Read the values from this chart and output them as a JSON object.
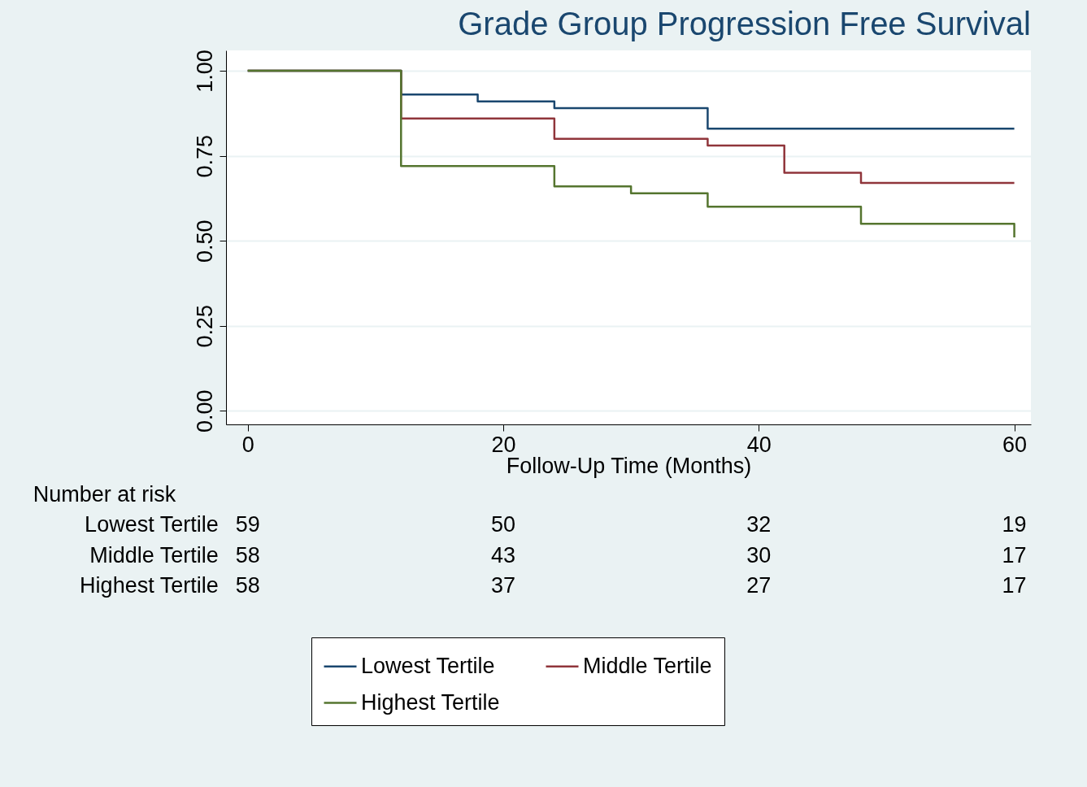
{
  "chart_data": {
    "type": "step",
    "title": "Grade Group Progression Free Survival",
    "xlabel": "Follow-Up Time (Months)",
    "xlim": [
      -1.7,
      61.3
    ],
    "xticks": [
      0,
      20,
      40,
      60
    ],
    "ylim": [
      -0.04,
      1.06
    ],
    "yticks": [
      {
        "value": 0,
        "label": "0.00"
      },
      {
        "value": 0.25,
        "label": "0.25"
      },
      {
        "value": 0.5,
        "label": "0.50"
      },
      {
        "value": 0.75,
        "label": "0.75"
      },
      {
        "value": 1,
        "label": "1.00"
      }
    ],
    "grid": "y",
    "legend": "bottom",
    "series": [
      {
        "name": "Lowest Tertile",
        "color": "#1a476f",
        "x": [
          0,
          12,
          18,
          24,
          36,
          60
        ],
        "values": [
          1,
          0.93,
          0.91,
          0.89,
          0.83,
          0.83
        ]
      },
      {
        "name": "Middle Tertile",
        "color": "#90353b",
        "x": [
          0,
          12,
          24,
          36,
          42,
          48,
          60
        ],
        "values": [
          1,
          0.86,
          0.8,
          0.78,
          0.7,
          0.67,
          0.67
        ]
      },
      {
        "name": "Highest Tertile",
        "color": "#55752f",
        "x": [
          0,
          12,
          24,
          30,
          36,
          48,
          60,
          60
        ],
        "values": [
          1,
          0.72,
          0.66,
          0.64,
          0.6,
          0.55,
          0.55,
          0.51
        ]
      }
    ],
    "annotations": [
      "Number at risk",
      "Lowest Tertile",
      "59",
      "50",
      "32",
      "19",
      "Middle Tertile",
      "58",
      "43",
      "30",
      "17",
      "Highest Tertile",
      "58",
      "37",
      "27",
      "17"
    ]
  }
}
